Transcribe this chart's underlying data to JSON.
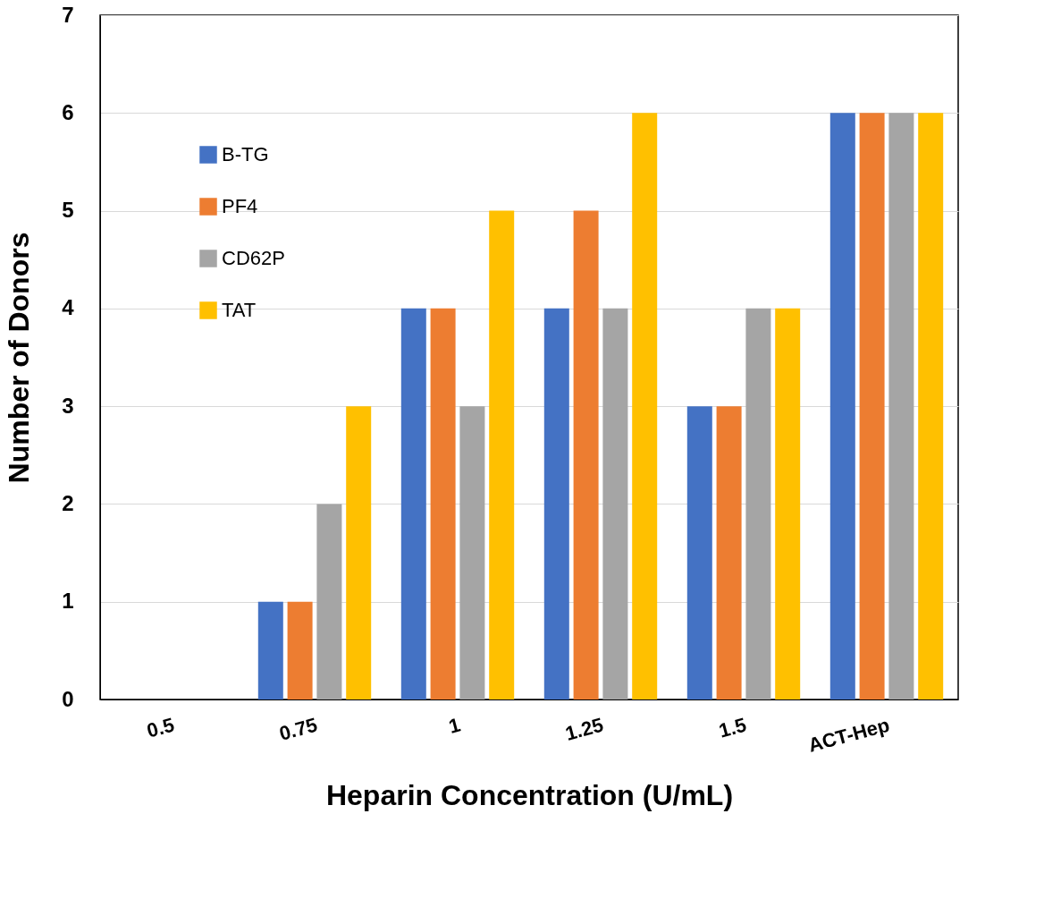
{
  "chart_data": {
    "type": "bar",
    "xlabel": "Heparin Concentration (U/mL)",
    "ylabel": "Number of  Donors",
    "categories": [
      "0.5",
      "0.75",
      "1",
      "1.25",
      "1.5",
      "ACT-Hep"
    ],
    "series": [
      {
        "name": "B-TG",
        "color": "#4472c4",
        "values": [
          0,
          1,
          4,
          4,
          3,
          6
        ]
      },
      {
        "name": "PF4",
        "color": "#ed7d31",
        "values": [
          0,
          1,
          4,
          5,
          3,
          6
        ]
      },
      {
        "name": "CD62P",
        "color": "#a5a5a5",
        "values": [
          0,
          2,
          3,
          4,
          4,
          6
        ]
      },
      {
        "name": "TAT",
        "color": "#ffc000",
        "values": [
          0,
          3,
          5,
          6,
          4,
          6
        ]
      }
    ],
    "ylim": [
      0,
      7
    ],
    "yticks": [
      0,
      1,
      2,
      3,
      4,
      5,
      6,
      7
    ],
    "grid": "y",
    "legend": "top left"
  }
}
